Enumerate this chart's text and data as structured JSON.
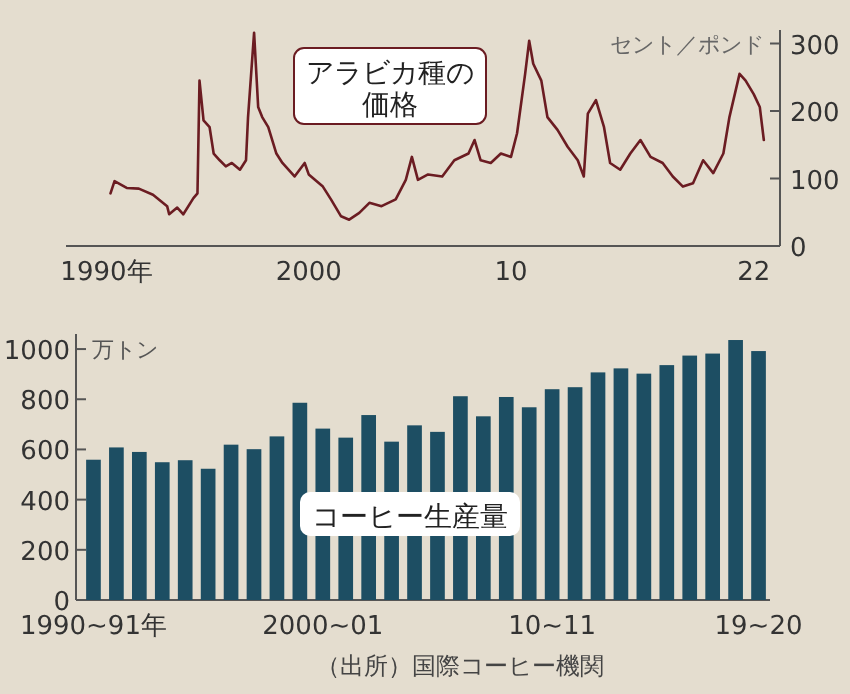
{
  "chart_data": [
    {
      "type": "line",
      "x": [
        1990.2,
        1990.4,
        1991.0,
        1991.6,
        1992.3,
        1993.0,
        1993.1,
        1993.5,
        1993.8,
        1994.3,
        1994.5,
        1994.6,
        1994.8,
        1995.1,
        1995.3,
        1995.6,
        1995.9,
        1996.2,
        1996.6,
        1996.9,
        1997.0,
        1997.3,
        1997.5,
        1997.7,
        1998.0,
        1998.4,
        1998.7,
        1999.3,
        1999.8,
        2000.0,
        2000.7,
        2001.1,
        2001.6,
        2002.0,
        2002.5,
        2003.0,
        2003.6,
        2004.3,
        2004.8,
        2005.1,
        2005.4,
        2005.9,
        2006.6,
        2007.2,
        2007.9,
        2008.2,
        2008.5,
        2009.0,
        2009.5,
        2010.0,
        2010.3,
        2010.7,
        2010.9,
        2011.1,
        2011.5,
        2011.8,
        2012.3,
        2012.8,
        2013.3,
        2013.6,
        2013.8,
        2014.2,
        2014.6,
        2014.9,
        2015.4,
        2015.9,
        2016.4,
        2016.9,
        2017.5,
        2018.0,
        2018.5,
        2019.0,
        2019.5,
        2020.0,
        2020.5,
        2020.8,
        2021.3,
        2021.6,
        2022.0,
        2022.3,
        2022.5
      ],
      "series": [
        {
          "name": "アラビカ種の価格",
          "color": "#6b1c22",
          "values": [
            78,
            96,
            86,
            85,
            76,
            59,
            47,
            57,
            47,
            71,
            78,
            245,
            186,
            176,
            137,
            127,
            118,
            123,
            113,
            127,
            191,
            316,
            206,
            191,
            176,
            137,
            123,
            103,
            123,
            106,
            88,
            69,
            44,
            39,
            49,
            64,
            59,
            69,
            98,
            132,
            98,
            106,
            103,
            127,
            137,
            157,
            127,
            123,
            137,
            132,
            167,
            255,
            304,
            270,
            245,
            191,
            172,
            147,
            127,
            103,
            196,
            216,
            176,
            123,
            113,
            137,
            157,
            132,
            123,
            103,
            88,
            93,
            127,
            108,
            137,
            191,
            255,
            245,
            225,
            206,
            157
          ]
        }
      ],
      "ylabel": "セント／ポンド",
      "xlim": [
        1988,
        2023.3
      ],
      "xticks": [
        {
          "value": 1990,
          "label": "1990年"
        },
        2000,
        {
          "value": 2010,
          "label": "10"
        },
        {
          "value": 2022,
          "label": "22"
        }
      ],
      "ylim": [
        0,
        320
      ],
      "yticks": [
        0,
        100,
        200,
        300
      ]
    },
    {
      "type": "bar",
      "categories": [
        "1990~91年",
        null,
        null,
        null,
        null,
        null,
        null,
        null,
        null,
        null,
        "2000~01",
        null,
        null,
        null,
        null,
        null,
        null,
        null,
        null,
        null,
        "10~11",
        null,
        null,
        null,
        null,
        null,
        null,
        null,
        null,
        "19~20"
      ],
      "series": [
        {
          "name": "コーヒー生産量",
          "color": "#1d4e63",
          "values": [
            559,
            608,
            590,
            549,
            557,
            523,
            619,
            601,
            652,
            786,
            683,
            647,
            737,
            631,
            696,
            670,
            812,
            732,
            809,
            768,
            840,
            848,
            907,
            923,
            902,
            936,
            974,
            982,
            1036,
            992
          ]
        }
      ],
      "ylabel": "万トン",
      "ylim": [
        0,
        1060
      ],
      "yticks": [
        0,
        200,
        400,
        600,
        800,
        1000
      ],
      "annotations": [
        "（出所）国際コーヒー機関"
      ]
    }
  ]
}
